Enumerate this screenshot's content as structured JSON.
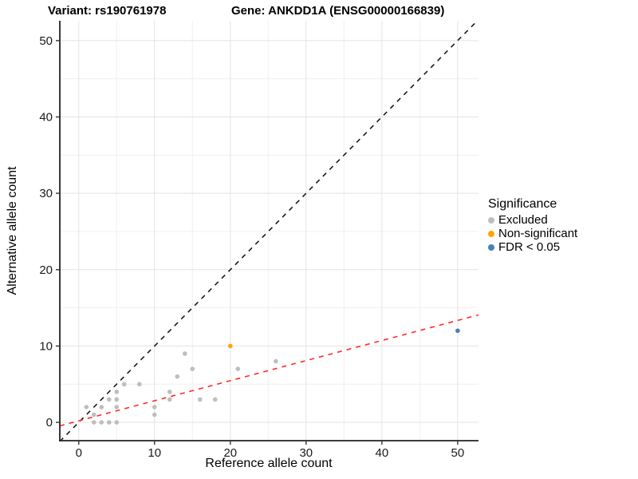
{
  "titles": {
    "left": "Variant: rs190761978",
    "right": "Gene: ANKDD1A (ENSG00000166839)"
  },
  "legend": {
    "title": "Significance",
    "items": [
      {
        "label": "Excluded",
        "color": "#BEBEBE"
      },
      {
        "label": "Non-significant",
        "color": "#FFA500"
      },
      {
        "label": "FDR < 0.05",
        "color": "#4682B4"
      }
    ]
  },
  "chart_data": {
    "type": "scatter",
    "xlabel": "Reference allele count",
    "ylabel": "Alternative allele count",
    "x_ticks": [
      0,
      10,
      20,
      30,
      40,
      50
    ],
    "y_ticks": [
      0,
      10,
      20,
      30,
      40,
      50
    ],
    "x_minor_ticks": [
      5,
      15,
      25,
      35,
      45
    ],
    "y_minor_ticks": [
      5,
      15,
      25,
      35,
      45
    ],
    "xlim": [
      -2.5,
      52.75
    ],
    "ylim": [
      -2.4,
      52.6
    ],
    "grid": true,
    "legend_position": "right",
    "series": [
      {
        "name": "Excluded",
        "color": "#BEBEBE",
        "points": [
          [
            1,
            2
          ],
          [
            2,
            0
          ],
          [
            2,
            1
          ],
          [
            3,
            0
          ],
          [
            3,
            2
          ],
          [
            4,
            0
          ],
          [
            4,
            3
          ],
          [
            5,
            0
          ],
          [
            5,
            2
          ],
          [
            5,
            3
          ],
          [
            5,
            4
          ],
          [
            6,
            5
          ],
          [
            8,
            5
          ],
          [
            10,
            1
          ],
          [
            10,
            2
          ],
          [
            12,
            3
          ],
          [
            12,
            4
          ],
          [
            13,
            6
          ],
          [
            14,
            9
          ],
          [
            15,
            7
          ],
          [
            16,
            3
          ],
          [
            18,
            3
          ],
          [
            21,
            7
          ],
          [
            26,
            8
          ]
        ]
      },
      {
        "name": "Non-significant",
        "color": "#FFA500",
        "points": [
          [
            20,
            10
          ]
        ]
      },
      {
        "name": "FDR < 0.05",
        "color": "#4682B4",
        "points": [
          [
            50,
            12
          ]
        ]
      }
    ],
    "lines": [
      {
        "name": "identity-line",
        "color": "#1A1A1A",
        "style": "dashed",
        "slope": 1,
        "intercept": 0
      },
      {
        "name": "fit-line",
        "color": "#FF2A2A",
        "style": "dashed",
        "slope": 0.263,
        "intercept": 0.2
      }
    ]
  }
}
